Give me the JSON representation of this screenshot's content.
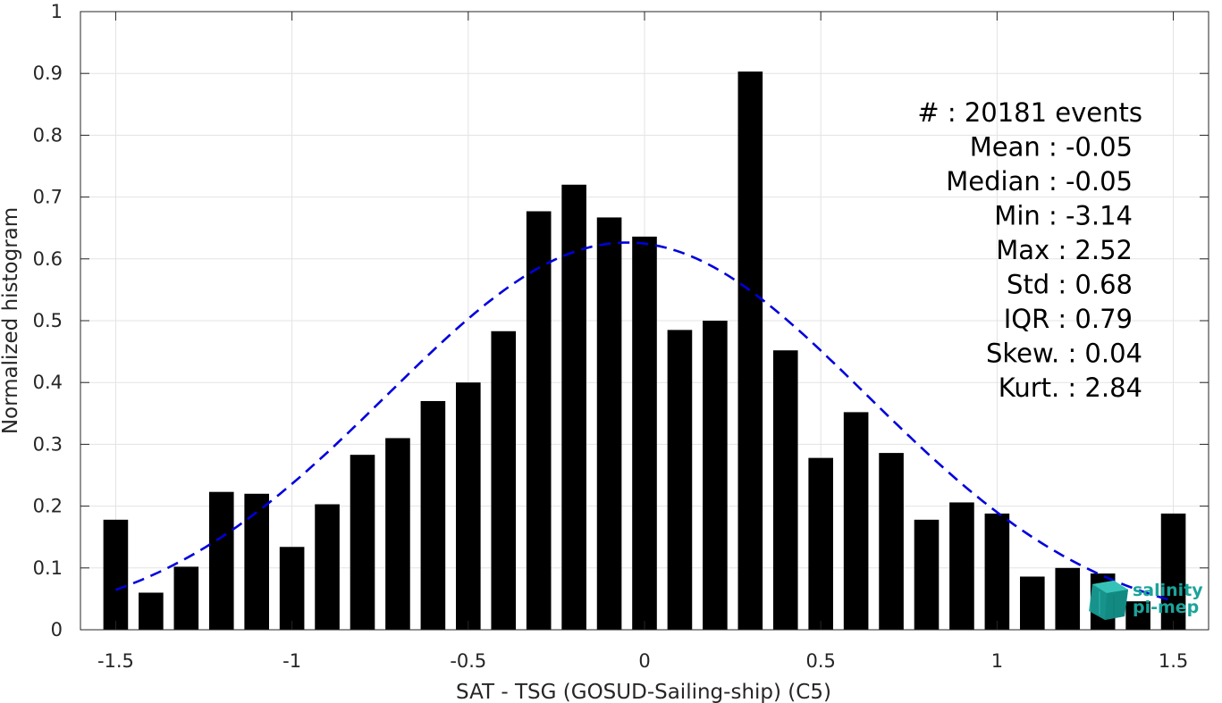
{
  "chart_data": {
    "type": "bar",
    "xlabel": "SAT - TSG (GOSUD-Sailing-ship) (C5)",
    "ylabel": "Normalized histogram",
    "xlim": [
      -1.6,
      1.6
    ],
    "ylim": [
      0,
      1
    ],
    "grid": true,
    "bar_width": 0.07,
    "x_ticks": [
      -1.5,
      -1,
      -0.5,
      0,
      0.5,
      1,
      1.5
    ],
    "x_tick_labels": [
      "-1.5",
      "-1",
      "-0.5",
      "0",
      "0.5",
      "1",
      "1.5"
    ],
    "y_ticks": [
      0,
      0.1,
      0.2,
      0.3,
      0.4,
      0.5,
      0.6,
      0.7,
      0.8,
      0.9,
      1
    ],
    "y_tick_labels": [
      "0",
      "0.1",
      "0.2",
      "0.3",
      "0.4",
      "0.5",
      "0.6",
      "0.7",
      "0.8",
      "0.9",
      "1"
    ],
    "x": [
      -1.5,
      -1.4,
      -1.3,
      -1.2,
      -1.1,
      -1.0,
      -0.9,
      -0.8,
      -0.7,
      -0.6,
      -0.5,
      -0.4,
      -0.3,
      -0.2,
      -0.1,
      0.0,
      0.1,
      0.2,
      0.3,
      0.4,
      0.5,
      0.6,
      0.7,
      0.8,
      0.9,
      1.0,
      1.1,
      1.2,
      1.3,
      1.4,
      1.5
    ],
    "values": [
      0.178,
      0.06,
      0.102,
      0.223,
      0.22,
      0.134,
      0.203,
      0.283,
      0.31,
      0.37,
      0.4,
      0.483,
      0.677,
      0.72,
      0.667,
      0.636,
      0.485,
      0.5,
      0.903,
      0.452,
      0.278,
      0.352,
      0.286,
      0.178,
      0.206,
      0.188,
      0.086,
      0.1,
      0.091,
      0.046,
      0.188
    ],
    "bar_color": "#000000",
    "fit_curve": {
      "style": "dashed",
      "color": "#0000dd",
      "mean": -0.05,
      "std": 0.68,
      "x_range": [
        -1.5,
        1.5
      ]
    },
    "stats": {
      "lines": [
        "#  : 20181 events",
        "Mean : -0.05",
        "Median : -0.05",
        "Min : -3.14",
        "Max : 2.52",
        "Std : 0.68",
        "IQR : 0.79",
        "Skew. : 0.04",
        "Kurt. : 2.84"
      ]
    }
  },
  "logo": {
    "line1": "salinity",
    "line2": "pi-mep",
    "color": "#1aa39a"
  }
}
